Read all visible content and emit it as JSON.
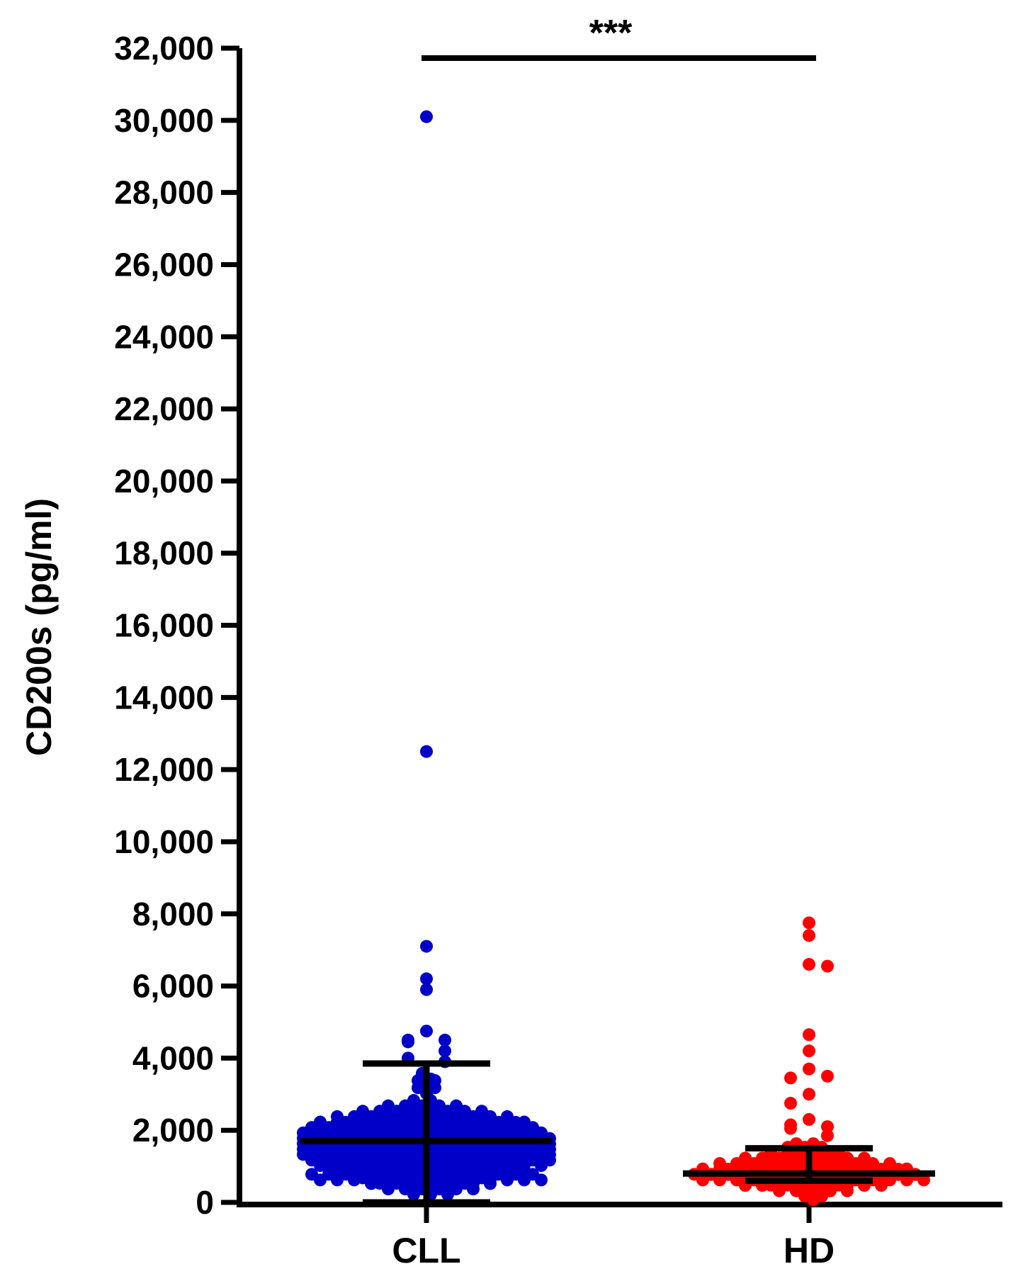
{
  "chart_data": {
    "type": "scatter",
    "subtype": "dot-plot with median and interquartile range",
    "title": "",
    "xlabel": "",
    "ylabel": "CD200s (pg/ml)",
    "ylim": [
      0,
      32000
    ],
    "yticks": [
      0,
      2000,
      4000,
      6000,
      8000,
      10000,
      12000,
      14000,
      16000,
      18000,
      20000,
      22000,
      24000,
      26000,
      28000,
      30000,
      32000
    ],
    "ytick_labels": [
      "0",
      "2,000",
      "4,000",
      "6,000",
      "8,000",
      "10,000",
      "12,000",
      "14,000",
      "16,000",
      "18,000",
      "20,000",
      "22,000",
      "24,000",
      "26,000",
      "28,000",
      "30,000",
      "32,000"
    ],
    "categories": [
      "CLL",
      "HD"
    ],
    "grid": false,
    "significance": {
      "label": "***",
      "between": [
        "CLL",
        "HD"
      ]
    },
    "series": [
      {
        "category": "CLL",
        "color": "#0000c8",
        "median": 1700,
        "q1": 0,
        "q3": 3850,
        "outliers": [
          30100,
          12500,
          7100,
          6200,
          5900,
          4750,
          4500,
          4500,
          4450,
          4200,
          4000,
          3900
        ],
        "bands": [
          {
            "y": 3500,
            "count": 2
          },
          {
            "y": 3300,
            "count": 3
          },
          {
            "y": 3100,
            "count": 3
          },
          {
            "y": 2750,
            "count": 4
          },
          {
            "y": 2600,
            "count": 10
          },
          {
            "y": 2450,
            "count": 16
          },
          {
            "y": 2300,
            "count": 22
          },
          {
            "y": 2150,
            "count": 26
          },
          {
            "y": 2000,
            "count": 28
          },
          {
            "y": 1850,
            "count": 30
          },
          {
            "y": 1700,
            "count": 30
          },
          {
            "y": 1550,
            "count": 30
          },
          {
            "y": 1400,
            "count": 30
          },
          {
            "y": 1250,
            "count": 30
          },
          {
            "y": 1100,
            "count": 28
          },
          {
            "y": 950,
            "count": 24
          },
          {
            "y": 800,
            "count": 20
          },
          {
            "y": 700,
            "count": 28
          },
          {
            "y": 600,
            "count": 16
          },
          {
            "y": 450,
            "count": 12
          },
          {
            "y": 300,
            "count": 6
          }
        ]
      },
      {
        "category": "HD",
        "color": "#ff0000",
        "median": 800,
        "q1": 600,
        "q3": 1500,
        "outliers": [
          7750,
          7400,
          6600,
          6550,
          4650,
          4200,
          3700,
          3500,
          3450,
          3000,
          2750,
          2300,
          2150,
          2100,
          2050,
          1850
        ],
        "bands": [
          {
            "y": 1550,
            "count": 4
          },
          {
            "y": 1450,
            "count": 6
          },
          {
            "y": 1300,
            "count": 10
          },
          {
            "y": 1150,
            "count": 16
          },
          {
            "y": 1000,
            "count": 22
          },
          {
            "y": 850,
            "count": 26
          },
          {
            "y": 700,
            "count": 28
          },
          {
            "y": 550,
            "count": 18
          },
          {
            "y": 400,
            "count": 10
          },
          {
            "y": 250,
            "count": 4
          },
          {
            "y": 150,
            "count": 2
          }
        ]
      }
    ]
  }
}
